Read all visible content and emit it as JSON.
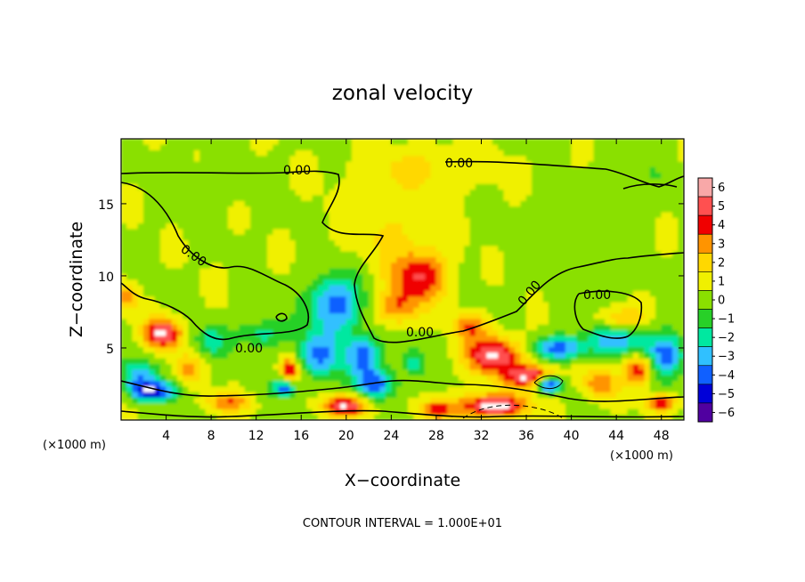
{
  "chart_data": {
    "type": "heatmap",
    "title": "zonal velocity",
    "xlabel": "X−coordinate",
    "ylabel": "Z−coordinate",
    "x_unit_left": "(×1000 m)",
    "x_unit_right": "(×1000 m)",
    "xlim": [
      0,
      50
    ],
    "ylim": [
      0,
      19.5
    ],
    "x_ticks": [
      4,
      8,
      12,
      16,
      20,
      24,
      28,
      32,
      36,
      40,
      44,
      48
    ],
    "y_ticks": [
      5,
      10,
      15
    ],
    "colorbar": {
      "levels": [
        6,
        5,
        4,
        3,
        2,
        1,
        0,
        -1,
        -2,
        -3,
        -4,
        -5,
        -6
      ],
      "tick_labels": [
        "6",
        "5",
        "4",
        "3",
        "2",
        "1",
        "0",
        "−1",
        "−2",
        "−3",
        "−4",
        "−5",
        "−6"
      ],
      "colors": [
        "#f8a8a8",
        "#ff5050",
        "#f00000",
        "#ff9400",
        "#ffd800",
        "#f0f000",
        "#8ae000",
        "#28d028",
        "#00e8a0",
        "#30c0ff",
        "#1060ff",
        "#0000d8",
        "#5000a0"
      ]
    },
    "contour_labels": [
      "0.00",
      "0.00",
      "0.00",
      "0.00",
      "0.00",
      "0.00",
      "0.00"
    ],
    "footer": "CONTOUR INTERVAL = 1.000E+01",
    "blobs": [
      {
        "x": 3.8,
        "z": 6.0,
        "v": 5.5,
        "sx": 1.6,
        "sz": 1.0
      },
      {
        "x": 3.0,
        "z": 2.0,
        "v": -5.0,
        "sx": 2.0,
        "sz": 0.7
      },
      {
        "x": 1.5,
        "z": 3.0,
        "v": -3.5,
        "sx": 1.5,
        "sz": 1.2
      },
      {
        "x": 6.0,
        "z": 3.5,
        "v": 2.5,
        "sx": 1.2,
        "sz": 1.0
      },
      {
        "x": 26.5,
        "z": 10.0,
        "v": 4.0,
        "sx": 2.6,
        "sz": 1.8
      },
      {
        "x": 24.5,
        "z": 7.8,
        "v": 3.0,
        "sx": 1.8,
        "sz": 1.2
      },
      {
        "x": 19.0,
        "z": 8.0,
        "v": -4.5,
        "sx": 2.4,
        "sz": 2.0
      },
      {
        "x": 17.5,
        "z": 4.5,
        "v": -4.0,
        "sx": 1.8,
        "sz": 1.5
      },
      {
        "x": 21.5,
        "z": 4.5,
        "v": -4.5,
        "sx": 1.6,
        "sz": 1.4
      },
      {
        "x": 22.5,
        "z": 2.5,
        "v": -4.0,
        "sx": 2.0,
        "sz": 1.0
      },
      {
        "x": 15.0,
        "z": 3.5,
        "v": 4.5,
        "sx": 0.8,
        "sz": 0.8
      },
      {
        "x": 14.5,
        "z": 2.2,
        "v": -4.5,
        "sx": 1.0,
        "sz": 0.6
      },
      {
        "x": 20.0,
        "z": 1.0,
        "v": 5.0,
        "sx": 2.0,
        "sz": 0.7
      },
      {
        "x": 12.5,
        "z": 6.0,
        "v": -2.5,
        "sx": 2.0,
        "sz": 1.0
      },
      {
        "x": 8.0,
        "z": 5.5,
        "v": -2.5,
        "sx": 1.5,
        "sz": 1.0
      },
      {
        "x": 33.0,
        "z": 4.5,
        "v": 5.5,
        "sx": 2.3,
        "sz": 1.3
      },
      {
        "x": 36.5,
        "z": 3.0,
        "v": 5.5,
        "sx": 2.2,
        "sz": 0.8
      },
      {
        "x": 33.0,
        "z": 1.0,
        "v": 6.0,
        "sx": 3.0,
        "sz": 0.8
      },
      {
        "x": 31.0,
        "z": 6.5,
        "v": 3.0,
        "sx": 1.5,
        "sz": 0.8
      },
      {
        "x": 38.0,
        "z": 2.5,
        "v": -6.0,
        "sx": 1.3,
        "sz": 0.6
      },
      {
        "x": 39.0,
        "z": 5.0,
        "v": -4.5,
        "sx": 2.0,
        "sz": 0.8
      },
      {
        "x": 44.0,
        "z": 5.5,
        "v": -3.5,
        "sx": 3.0,
        "sz": 1.0
      },
      {
        "x": 48.5,
        "z": 4.5,
        "v": -4.5,
        "sx": 1.5,
        "sz": 1.5
      },
      {
        "x": 46.0,
        "z": 3.5,
        "v": 4.0,
        "sx": 1.2,
        "sz": 1.0
      },
      {
        "x": 44.5,
        "z": 7.0,
        "v": 2.5,
        "sx": 1.8,
        "sz": 0.8
      },
      {
        "x": 42.5,
        "z": 2.5,
        "v": 3.0,
        "sx": 1.5,
        "sz": 1.0
      },
      {
        "x": 28.0,
        "z": 0.7,
        "v": 3.5,
        "sx": 1.5,
        "sz": 0.6
      },
      {
        "x": 9.5,
        "z": 1.2,
        "v": 3.0,
        "sx": 2.0,
        "sz": 0.6
      },
      {
        "x": 26.0,
        "z": 4.0,
        "v": -2.5,
        "sx": 1.0,
        "sz": 1.0
      },
      {
        "x": 27.0,
        "z": 17.5,
        "v": 1.3,
        "sx": 6.0,
        "sz": 1.5
      },
      {
        "x": 8.0,
        "z": 16.5,
        "v": -0.5,
        "sx": 4.0,
        "sz": 2.0
      },
      {
        "x": 46.0,
        "z": 17.0,
        "v": -0.5,
        "sx": 4.0,
        "sz": 2.0
      },
      {
        "x": 24.0,
        "z": 13.5,
        "v": 1.2,
        "sx": 4.0,
        "sz": 2.5
      },
      {
        "x": 40.0,
        "z": 12.0,
        "v": -0.6,
        "sx": 5.0,
        "sz": 3.0
      },
      {
        "x": 0.5,
        "z": 8.5,
        "v": 2.5,
        "sx": 1.0,
        "sz": 1.0
      },
      {
        "x": 48.0,
        "z": 1.2,
        "v": 4.0,
        "sx": 1.2,
        "sz": 0.6
      }
    ]
  }
}
